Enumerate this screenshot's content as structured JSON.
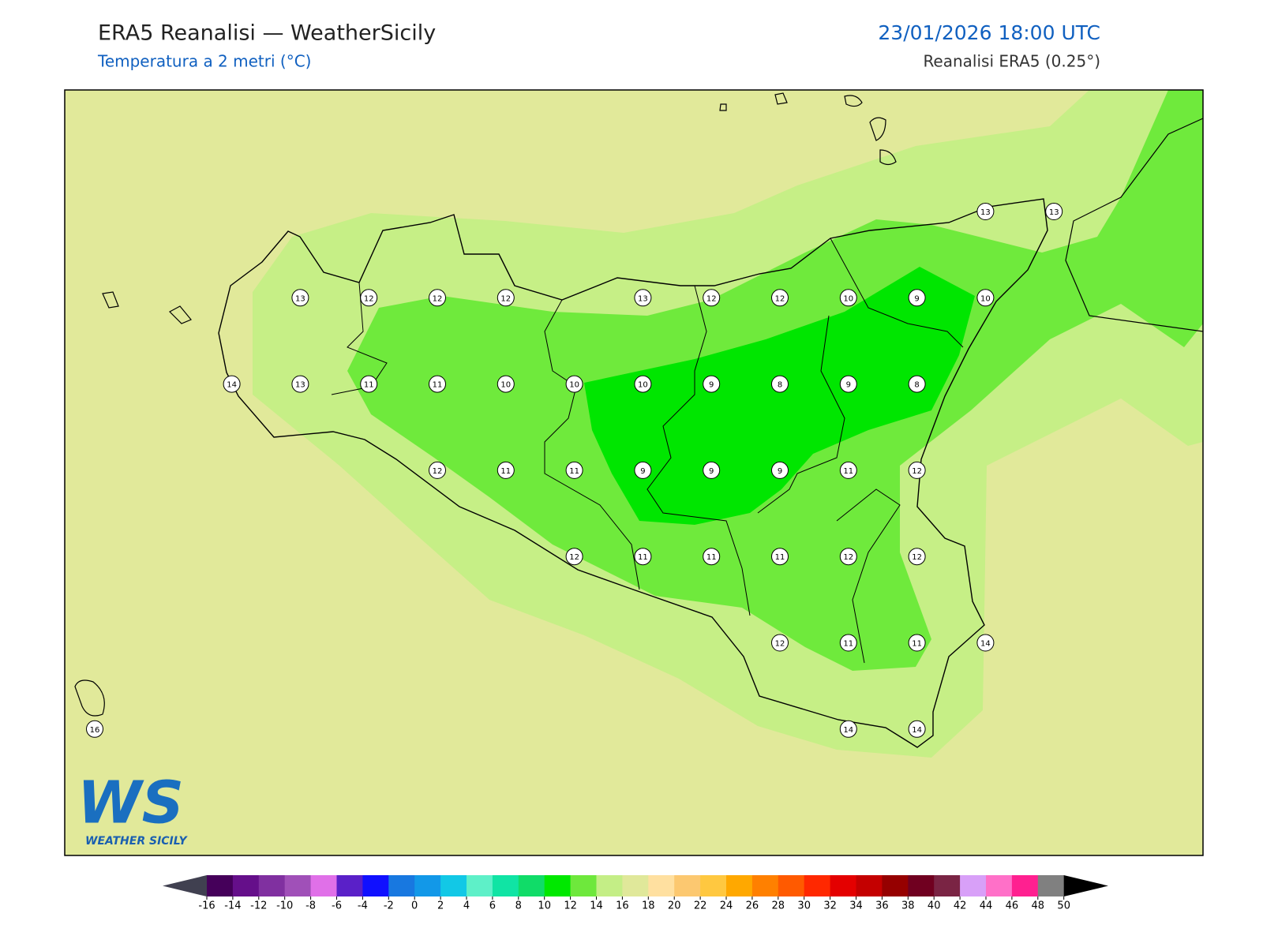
{
  "header": {
    "title": "ERA5 Reanalisi — WeatherSicily",
    "subtitle": "Temperatura a 2 metri (°C)",
    "datetime": "23/01/2026 18:00 UTC",
    "source": "Reanalisi ERA5 (0.25°)"
  },
  "map": {
    "background": "#e1e99a",
    "band_colors": [
      "#c6ef86",
      "#6fea3c",
      "#00e600"
    ],
    "point_grid": [
      [
        null,
        null,
        null,
        null,
        null,
        null,
        null,
        null,
        null,
        null,
        null,
        null,
        null,
        13,
        13
      ],
      [
        null,
        null,
        null,
        13,
        12,
        12,
        12,
        null,
        13,
        12,
        12,
        10,
        9,
        10,
        null
      ],
      [
        null,
        null,
        14,
        13,
        11,
        11,
        10,
        10,
        10,
        9,
        8,
        9,
        8,
        null,
        null
      ],
      [
        null,
        null,
        null,
        null,
        null,
        12,
        11,
        11,
        9,
        9,
        9,
        11,
        12,
        null,
        null
      ],
      [
        null,
        null,
        null,
        null,
        null,
        null,
        null,
        12,
        11,
        11,
        11,
        12,
        12,
        null,
        null
      ],
      [
        null,
        null,
        null,
        null,
        null,
        null,
        null,
        null,
        null,
        null,
        12,
        11,
        11,
        14,
        null
      ],
      [
        16,
        null,
        null,
        null,
        null,
        null,
        null,
        null,
        null,
        null,
        null,
        14,
        14,
        null,
        null
      ]
    ]
  },
  "logo": {
    "mark": "WS",
    "name": "WEATHER SICILY"
  },
  "colorbar": {
    "ticks": [
      -16,
      -14,
      -12,
      -10,
      -8,
      -6,
      -4,
      -2,
      0,
      2,
      4,
      6,
      8,
      10,
      12,
      14,
      16,
      18,
      20,
      22,
      24,
      26,
      28,
      30,
      32,
      34,
      36,
      38,
      40,
      42,
      44,
      46,
      48,
      50
    ],
    "colors": [
      "#45005a",
      "#650f8a",
      "#8030a0",
      "#a050b8",
      "#e070e8",
      "#5a20c8",
      "#1010ff",
      "#1878e0",
      "#1298e8",
      "#12c8e6",
      "#5ef0c8",
      "#10e4a4",
      "#10dc68",
      "#00e800",
      "#6ee83c",
      "#c4ee86",
      "#e0e89a",
      "#ffe0a0",
      "#fcc870",
      "#ffc840",
      "#ffa800",
      "#ff8000",
      "#ff5a00",
      "#ff2800",
      "#e40000",
      "#c40000",
      "#960000",
      "#700020",
      "#7a2444",
      "#d8a0f8",
      "#ff70c8",
      "#ff2090",
      "#808080"
    ],
    "under_color": "#404050",
    "over_color": "#000000"
  }
}
